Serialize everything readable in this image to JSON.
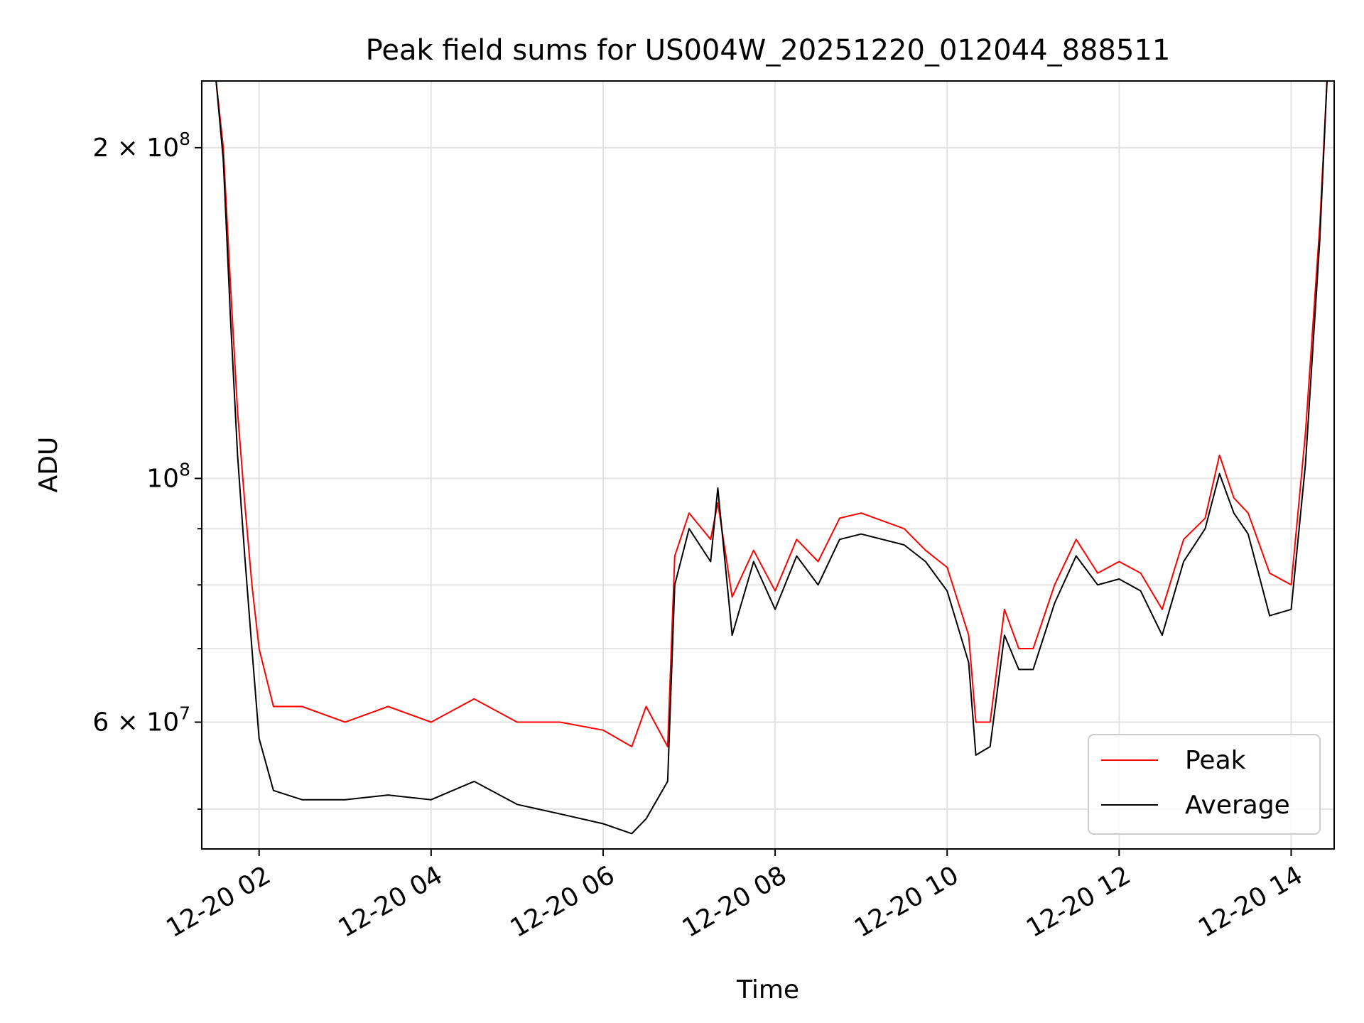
{
  "chart_data": {
    "type": "line",
    "title": "Peak field sums for US004W_20251220_012044_888511",
    "xlabel": "Time",
    "ylabel": "ADU",
    "y_scale": "log",
    "ylim": [
      46000000,
      230000000
    ],
    "xlim": [
      "2025-12-20 01:20",
      "2025-12-20 14:30"
    ],
    "grid": true,
    "legend_position": "bottom-right",
    "x_ticks": [
      {
        "value": "2025-12-20 02:00",
        "label": "12-20 02"
      },
      {
        "value": "2025-12-20 04:00",
        "label": "12-20 04"
      },
      {
        "value": "2025-12-20 06:00",
        "label": "12-20 06"
      },
      {
        "value": "2025-12-20 08:00",
        "label": "12-20 08"
      },
      {
        "value": "2025-12-20 10:00",
        "label": "12-20 10"
      },
      {
        "value": "2025-12-20 12:00",
        "label": "12-20 12"
      },
      {
        "value": "2025-12-20 14:00",
        "label": "12-20 14"
      }
    ],
    "y_ticks_major": [
      {
        "value": 200000000,
        "base": "2 × 10",
        "exp": "8"
      },
      {
        "value": 100000000,
        "base": "10",
        "exp": "8"
      },
      {
        "value": 60000000,
        "base": "6 × 10",
        "exp": "7"
      }
    ],
    "y_ticks_minor": [
      50000000,
      70000000,
      80000000,
      90000000
    ],
    "series": [
      {
        "name": "Peak",
        "color": "#ff0000",
        "x": [
          "2025-12-20 01:20",
          "2025-12-20 01:30",
          "2025-12-20 01:35",
          "2025-12-20 01:40",
          "2025-12-20 01:45",
          "2025-12-20 01:50",
          "2025-12-20 01:55",
          "2025-12-20 02:00",
          "2025-12-20 02:10",
          "2025-12-20 02:30",
          "2025-12-20 03:00",
          "2025-12-20 03:30",
          "2025-12-20 04:00",
          "2025-12-20 04:30",
          "2025-12-20 05:00",
          "2025-12-20 05:30",
          "2025-12-20 06:00",
          "2025-12-20 06:20",
          "2025-12-20 06:30",
          "2025-12-20 06:45",
          "2025-12-20 06:50",
          "2025-12-20 07:00",
          "2025-12-20 07:15",
          "2025-12-20 07:20",
          "2025-12-20 07:30",
          "2025-12-20 07:45",
          "2025-12-20 08:00",
          "2025-12-20 08:15",
          "2025-12-20 08:30",
          "2025-12-20 08:45",
          "2025-12-20 09:00",
          "2025-12-20 09:30",
          "2025-12-20 09:45",
          "2025-12-20 10:00",
          "2025-12-20 10:15",
          "2025-12-20 10:20",
          "2025-12-20 10:30",
          "2025-12-20 10:40",
          "2025-12-20 10:50",
          "2025-12-20 11:00",
          "2025-12-20 11:15",
          "2025-12-20 11:30",
          "2025-12-20 11:45",
          "2025-12-20 12:00",
          "2025-12-20 12:15",
          "2025-12-20 12:30",
          "2025-12-20 12:45",
          "2025-12-20 13:00",
          "2025-12-20 13:10",
          "2025-12-20 13:20",
          "2025-12-20 13:30",
          "2025-12-20 13:45",
          "2025-12-20 14:00",
          "2025-12-20 14:10",
          "2025-12-20 14:20",
          "2025-12-20 14:25"
        ],
        "values": [
          230000000,
          230000000,
          200000000,
          150000000,
          115000000,
          95000000,
          80000000,
          70000000,
          62000000,
          62000000,
          60000000,
          62000000,
          60000000,
          63000000,
          60000000,
          60000000,
          59000000,
          57000000,
          62000000,
          57000000,
          85000000,
          93000000,
          88000000,
          95000000,
          78000000,
          86000000,
          79000000,
          88000000,
          84000000,
          92000000,
          93000000,
          90000000,
          86000000,
          83000000,
          72000000,
          60000000,
          60000000,
          76000000,
          70000000,
          70000000,
          80000000,
          88000000,
          82000000,
          84000000,
          82000000,
          76000000,
          88000000,
          92000000,
          105000000,
          96000000,
          93000000,
          82000000,
          80000000,
          110000000,
          170000000,
          230000000
        ]
      },
      {
        "name": "Average",
        "color": "#000000",
        "x": [
          "2025-12-20 01:20",
          "2025-12-20 01:30",
          "2025-12-20 01:35",
          "2025-12-20 01:40",
          "2025-12-20 01:45",
          "2025-12-20 01:50",
          "2025-12-20 01:55",
          "2025-12-20 02:00",
          "2025-12-20 02:10",
          "2025-12-20 02:30",
          "2025-12-20 03:00",
          "2025-12-20 03:30",
          "2025-12-20 04:00",
          "2025-12-20 04:30",
          "2025-12-20 05:00",
          "2025-12-20 05:30",
          "2025-12-20 06:00",
          "2025-12-20 06:20",
          "2025-12-20 06:30",
          "2025-12-20 06:45",
          "2025-12-20 06:50",
          "2025-12-20 07:00",
          "2025-12-20 07:15",
          "2025-12-20 07:20",
          "2025-12-20 07:30",
          "2025-12-20 07:45",
          "2025-12-20 08:00",
          "2025-12-20 08:15",
          "2025-12-20 08:30",
          "2025-12-20 08:45",
          "2025-12-20 09:00",
          "2025-12-20 09:30",
          "2025-12-20 09:45",
          "2025-12-20 10:00",
          "2025-12-20 10:15",
          "2025-12-20 10:20",
          "2025-12-20 10:30",
          "2025-12-20 10:40",
          "2025-12-20 10:50",
          "2025-12-20 11:00",
          "2025-12-20 11:15",
          "2025-12-20 11:30",
          "2025-12-20 11:45",
          "2025-12-20 12:00",
          "2025-12-20 12:15",
          "2025-12-20 12:30",
          "2025-12-20 12:45",
          "2025-12-20 13:00",
          "2025-12-20 13:10",
          "2025-12-20 13:20",
          "2025-12-20 13:30",
          "2025-12-20 13:45",
          "2025-12-20 14:00",
          "2025-12-20 14:10",
          "2025-12-20 14:20",
          "2025-12-20 14:25"
        ],
        "values": [
          230000000,
          230000000,
          195000000,
          140000000,
          105000000,
          85000000,
          70000000,
          58000000,
          52000000,
          51000000,
          51000000,
          51500000,
          51000000,
          53000000,
          50500000,
          49500000,
          48500000,
          47500000,
          49000000,
          53000000,
          80000000,
          90000000,
          84000000,
          98000000,
          72000000,
          84000000,
          76000000,
          85000000,
          80000000,
          88000000,
          89000000,
          87000000,
          84000000,
          79000000,
          68000000,
          56000000,
          57000000,
          72000000,
          67000000,
          67000000,
          77000000,
          85000000,
          80000000,
          81000000,
          79000000,
          72000000,
          84000000,
          90000000,
          101000000,
          93000000,
          89000000,
          75000000,
          76000000,
          103000000,
          165000000,
          230000000
        ]
      }
    ]
  }
}
